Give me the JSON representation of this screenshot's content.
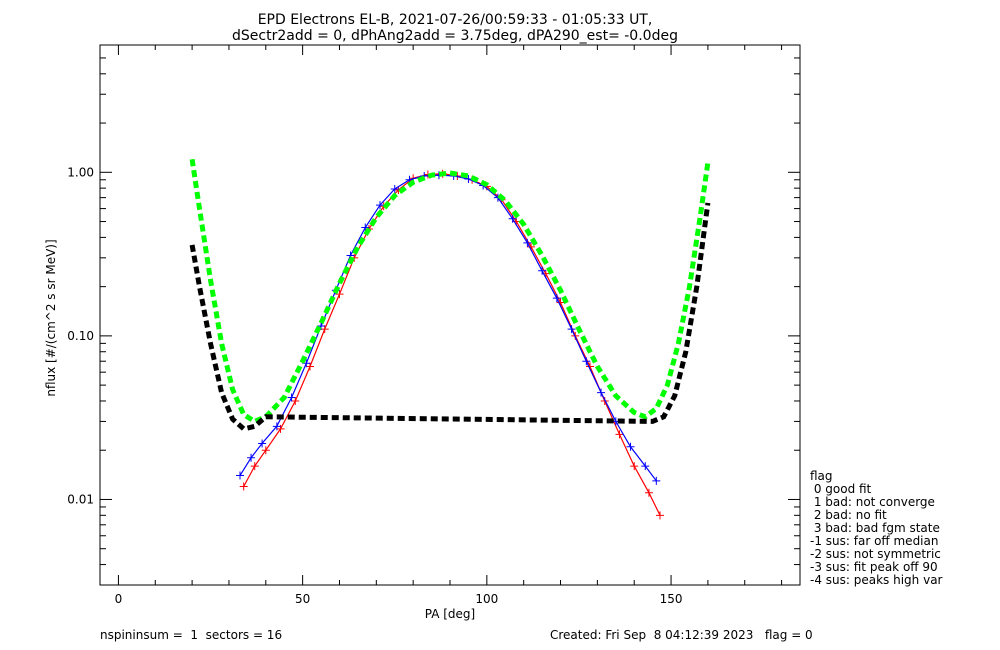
{
  "chart_data": {
    "type": "line",
    "title": "EPD Electrons EL-B, 2021-07-26/00:59:33 - 01:05:33 UT,",
    "subtitle": "dSectr2add = 0, dPhAng2add = 3.75deg, dPA290_est=  -0.0deg",
    "xlabel": "PA [deg]",
    "ylabel": "nflux [#/(cm^2 s sr MeV)]",
    "xlim": [
      -5,
      185
    ],
    "ylim": [
      0.003,
      6
    ],
    "yscale": "log",
    "x_ticks": [
      0,
      50,
      100,
      150
    ],
    "x_tick_labels": [
      "0",
      "50",
      "100",
      "150"
    ],
    "y_ticks": [
      0.01,
      0.1,
      1.0
    ],
    "y_tick_labels": [
      "0.01",
      "0.10",
      "1.00"
    ],
    "series": [
      {
        "color": "#ff0000",
        "style": "thin-line-plus-markers",
        "x": [
          34,
          37,
          40,
          44,
          48,
          52,
          56,
          60,
          64,
          68,
          72,
          76,
          80,
          84,
          88,
          92,
          96,
          100,
          104,
          108,
          112,
          116,
          120,
          124,
          128,
          132,
          136,
          140,
          144,
          147
        ],
        "y": [
          0.012,
          0.016,
          0.02,
          0.027,
          0.04,
          0.065,
          0.11,
          0.18,
          0.3,
          0.45,
          0.62,
          0.78,
          0.92,
          0.97,
          0.98,
          0.95,
          0.9,
          0.82,
          0.68,
          0.5,
          0.35,
          0.24,
          0.16,
          0.1,
          0.065,
          0.04,
          0.025,
          0.016,
          0.011,
          0.008
        ]
      },
      {
        "color": "#0000ff",
        "style": "thin-line-plus-markers",
        "x": [
          33,
          36,
          39,
          43,
          47,
          51,
          55,
          59,
          63,
          67,
          71,
          75,
          79,
          83,
          87,
          91,
          95,
          99,
          103,
          107,
          111,
          115,
          119,
          123,
          127,
          131,
          135,
          139,
          143,
          146
        ],
        "y": [
          0.014,
          0.018,
          0.022,
          0.028,
          0.042,
          0.068,
          0.115,
          0.19,
          0.31,
          0.46,
          0.63,
          0.79,
          0.9,
          0.95,
          0.96,
          0.95,
          0.91,
          0.83,
          0.7,
          0.52,
          0.37,
          0.25,
          0.17,
          0.11,
          0.07,
          0.045,
          0.03,
          0.021,
          0.016,
          0.013
        ]
      },
      {
        "color": "#00ff00",
        "style": "thick-dashed",
        "x": [
          20,
          22,
          25,
          28,
          31,
          34,
          37,
          40,
          45,
          50,
          55,
          60,
          65,
          70,
          75,
          80,
          85,
          90,
          95,
          100,
          105,
          110,
          115,
          120,
          125,
          130,
          135,
          140,
          143,
          146,
          149,
          152,
          155,
          158,
          160
        ],
        "y": [
          1.2,
          0.6,
          0.22,
          0.09,
          0.047,
          0.033,
          0.03,
          0.032,
          0.042,
          0.07,
          0.12,
          0.21,
          0.35,
          0.53,
          0.72,
          0.87,
          0.96,
          0.99,
          0.95,
          0.84,
          0.67,
          0.48,
          0.31,
          0.19,
          0.11,
          0.065,
          0.043,
          0.034,
          0.032,
          0.036,
          0.05,
          0.09,
          0.2,
          0.55,
          1.15
        ]
      },
      {
        "color": "#000000",
        "style": "thick-dashed",
        "x": [
          20,
          22,
          25,
          28,
          31,
          34,
          37,
          40,
          145,
          148,
          151,
          154,
          157,
          160
        ],
        "y": [
          0.36,
          0.2,
          0.09,
          0.045,
          0.031,
          0.027,
          0.028,
          0.032,
          0.03,
          0.032,
          0.043,
          0.08,
          0.2,
          0.65
        ]
      }
    ],
    "legend": {
      "placement": "right",
      "title": "flag",
      "entries": [
        " 0 good fit",
        " 1 bad: not converge",
        " 2 bad: no fit",
        " 3 bad: bad fgm state",
        "-1 sus: far off median",
        "-2 sus: not symmetric",
        "-3 sus: fit peak off 90",
        "-4 sus: peaks high var"
      ]
    },
    "grid": false
  },
  "footer": {
    "left": "nspininsum =  1  sectors = 16",
    "right": "Created: Fri Sep  8 04:12:39 2023   flag = 0"
  }
}
